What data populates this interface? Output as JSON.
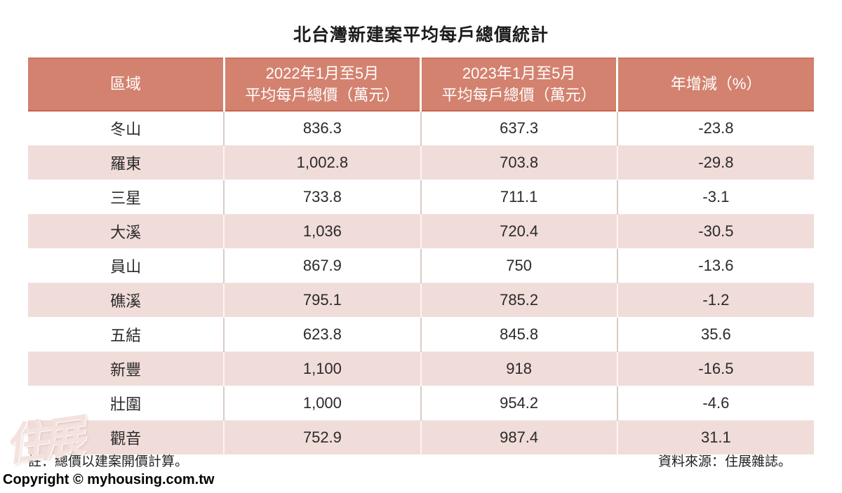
{
  "title": "北台灣新建案平均每戶總價統計",
  "table": {
    "headers": [
      "區域",
      "2022年1月至5月\n平均每戶總價（萬元）",
      "2023年1月至5月\n平均每戶總價（萬元）",
      "年增減（%）"
    ],
    "rows": [
      {
        "region": "冬山",
        "y2022": "836.3",
        "y2023": "637.3",
        "yoy": "-23.8"
      },
      {
        "region": "羅東",
        "y2022": "1,002.8",
        "y2023": "703.8",
        "yoy": "-29.8"
      },
      {
        "region": "三星",
        "y2022": "733.8",
        "y2023": "711.1",
        "yoy": "-3.1"
      },
      {
        "region": "大溪",
        "y2022": "1,036",
        "y2023": "720.4",
        "yoy": "-30.5"
      },
      {
        "region": "員山",
        "y2022": "867.9",
        "y2023": "750",
        "yoy": "-13.6"
      },
      {
        "region": "礁溪",
        "y2022": "795.1",
        "y2023": "785.2",
        "yoy": "-1.2"
      },
      {
        "region": "五結",
        "y2022": "623.8",
        "y2023": "845.8",
        "yoy": "35.6"
      },
      {
        "region": "新豐",
        "y2022": "1,100",
        "y2023": "918",
        "yoy": "-16.5"
      },
      {
        "region": "壯圍",
        "y2022": "1,000",
        "y2023": "954.2",
        "yoy": "-4.6"
      },
      {
        "region": "觀音",
        "y2022": "752.9",
        "y2023": "987.4",
        "yoy": "31.1"
      }
    ]
  },
  "notes": {
    "left": "註：總價以建案開價計算。",
    "right": "資料來源：住展雜誌。"
  },
  "copyright": "Copyright © myhousing.com.tw",
  "watermark": "住展",
  "colors": {
    "header_bg": "#D3826F",
    "header_text": "#FFFFFF",
    "alt_row_bg": "#F0DCD9",
    "row_bg": "#FFFFFF",
    "body_text": "#2A2A2A",
    "header_bottom_border": "#C5624E"
  },
  "chart_data": {
    "type": "table",
    "title": "北台灣新建案平均每戶總價統計",
    "columns": [
      "區域",
      "2022年1月至5月平均每戶總價（萬元）",
      "2023年1月至5月平均每戶總價（萬元）",
      "年增減（%）"
    ],
    "rows": [
      [
        "冬山",
        836.3,
        637.3,
        -23.8
      ],
      [
        "羅東",
        1002.8,
        703.8,
        -29.8
      ],
      [
        "三星",
        733.8,
        711.1,
        -3.1
      ],
      [
        "大溪",
        1036,
        720.4,
        -30.5
      ],
      [
        "員山",
        867.9,
        750,
        -13.6
      ],
      [
        "礁溪",
        795.1,
        785.2,
        -1.2
      ],
      [
        "五結",
        623.8,
        845.8,
        35.6
      ],
      [
        "新豐",
        1100,
        918,
        -16.5
      ],
      [
        "壯圍",
        1000,
        954.2,
        -4.6
      ],
      [
        "觀音",
        752.9,
        987.4,
        31.1
      ]
    ],
    "notes": [
      "註：總價以建案開價計算。",
      "資料來源：住展雜誌。"
    ]
  }
}
